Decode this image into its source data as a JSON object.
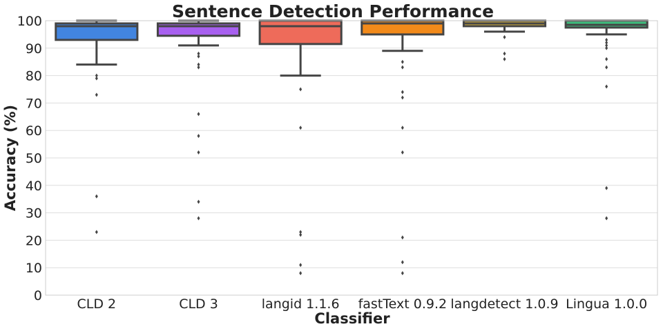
{
  "chart_data": {
    "type": "box",
    "title": "Sentence Detection Performance",
    "xlabel": "Classifier",
    "ylabel": "Accuracy (%)",
    "ylim": [
      0,
      100
    ],
    "yticks": [
      0,
      10,
      20,
      30,
      40,
      50,
      60,
      70,
      80,
      90,
      100
    ],
    "grid": "horizontal",
    "categories": [
      "CLD 2",
      "CLD 3",
      "langid 1.1.6",
      "fastText 0.9.2",
      "langdetect 1.0.9",
      "Lingua 1.0.0"
    ],
    "boxes": [
      {
        "name": "CLD 2",
        "color": "#4285e0",
        "whisker_low": 84,
        "q1": 93,
        "median": 98,
        "q3": 99,
        "whisker_high": 100,
        "outliers": [
          80,
          79,
          73,
          36,
          23
        ]
      },
      {
        "name": "CLD 3",
        "color": "#a860f0",
        "whisker_low": 91,
        "q1": 94.5,
        "median": 98,
        "q3": 99,
        "whisker_high": 100,
        "outliers": [
          88,
          87,
          84,
          83,
          66,
          58,
          52,
          34,
          28
        ]
      },
      {
        "name": "langid 1.1.6",
        "color": "#ee6b5a",
        "whisker_low": 80,
        "q1": 91.5,
        "median": 98,
        "q3": 100,
        "whisker_high": 100,
        "outliers": [
          75,
          61,
          23,
          22,
          11,
          8
        ]
      },
      {
        "name": "fastText 0.9.2",
        "color": "#f28a1a",
        "whisker_low": 89,
        "q1": 95,
        "median": 99,
        "q3": 100,
        "whisker_high": 100,
        "outliers": [
          85,
          83,
          74,
          72,
          61,
          52,
          21,
          12,
          8
        ]
      },
      {
        "name": "langdetect 1.0.9",
        "color": "#d9b43a",
        "whisker_low": 96,
        "q1": 98,
        "median": 99,
        "q3": 100,
        "whisker_high": 100,
        "outliers": [
          94,
          88,
          86
        ]
      },
      {
        "name": "Lingua 1.0.0",
        "color": "#3fbf7f",
        "whisker_low": 95,
        "q1": 97.5,
        "median": 98.5,
        "q3": 100,
        "whisker_high": 100,
        "outliers": [
          93,
          92,
          91,
          90,
          86,
          83,
          76,
          39,
          28
        ]
      }
    ]
  }
}
